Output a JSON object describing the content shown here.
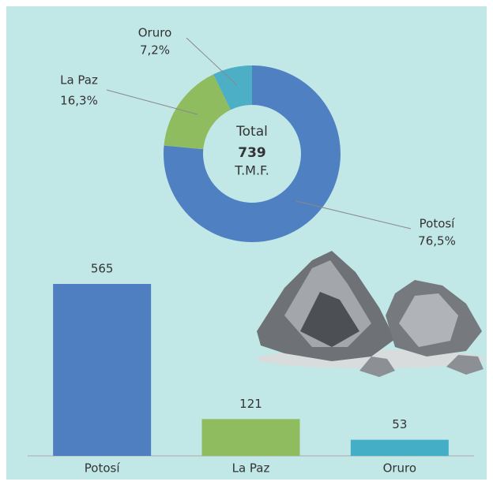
{
  "chart_data": [
    {
      "type": "donut",
      "categories": [
        "Potosí",
        "La Paz",
        "Oruro"
      ],
      "values": [
        76.5,
        16.3,
        7.2
      ],
      "value_labels": [
        "76,5%",
        "16,3%",
        "7,2%"
      ],
      "colors": [
        "#4f81c2",
        "#8fbc5e",
        "#4cafc6"
      ],
      "center_title": "Total",
      "total": 739,
      "unit": "T.M.F."
    },
    {
      "type": "bar",
      "categories": [
        "Potosí",
        "La Paz",
        "Oruro"
      ],
      "values": [
        565,
        121,
        53
      ],
      "colors": [
        "#4f7fc1",
        "#8fbc5e",
        "#44aec6"
      ]
    }
  ]
}
